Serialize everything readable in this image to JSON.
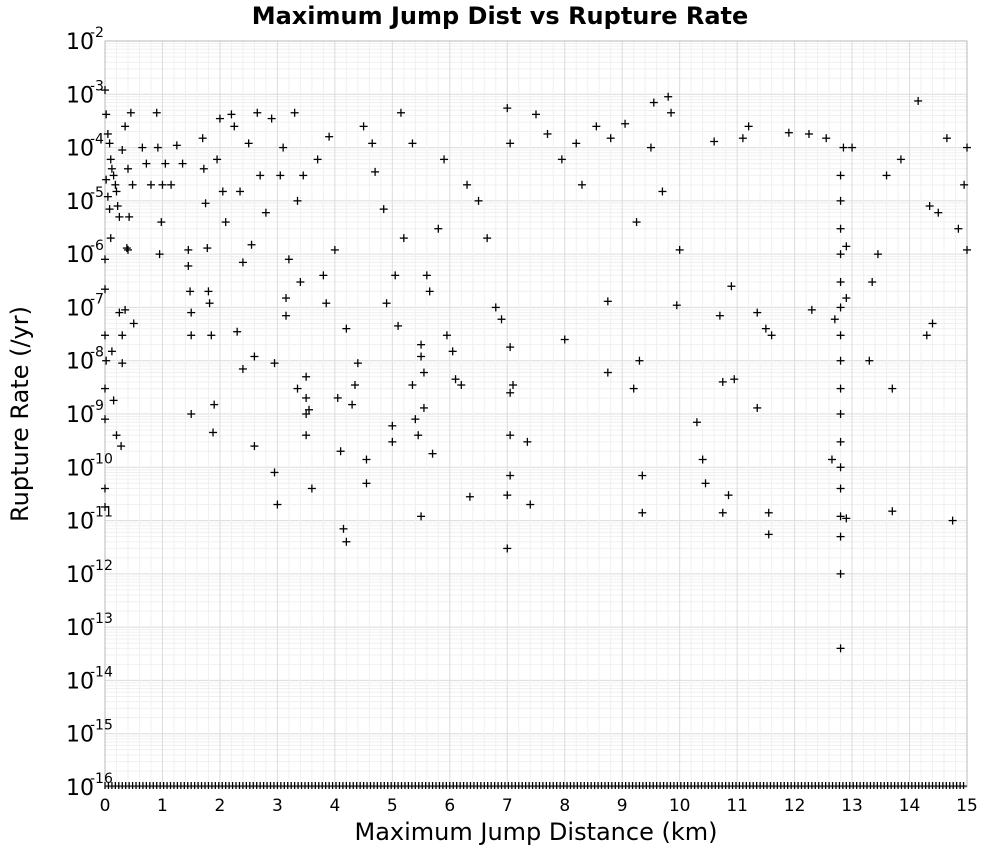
{
  "chart_data": {
    "type": "scatter",
    "title": "Maximum Jump Dist vs Rupture Rate",
    "xlabel": "Maximum Jump Distance (km)",
    "ylabel": "Rupture Rate (/yr)",
    "xlim": [
      0,
      15
    ],
    "ylim": [
      1e-16,
      0.01
    ],
    "yscale": "log",
    "grid": true,
    "marker": "plus",
    "x_ticks": [
      0,
      1,
      2,
      3,
      4,
      5,
      6,
      7,
      8,
      9,
      10,
      11,
      12,
      13,
      14,
      15
    ],
    "x_tick_labels": [
      "0",
      "1",
      "2",
      "3",
      "4",
      "5",
      "6",
      "7",
      "8",
      "9",
      "10",
      "11",
      "12",
      "13",
      "14",
      "15"
    ],
    "y_tick_labels": [
      {
        "base": "10",
        "exp": "-2"
      },
      {
        "base": "10",
        "exp": "-3"
      },
      {
        "base": "10",
        "exp": "-4"
      },
      {
        "base": "10",
        "exp": "-5"
      },
      {
        "base": "10",
        "exp": "-6"
      },
      {
        "base": "10",
        "exp": "-7"
      },
      {
        "base": "10",
        "exp": "-8"
      },
      {
        "base": "10",
        "exp": "-9"
      },
      {
        "base": "10",
        "exp": "-10"
      },
      {
        "base": "10",
        "exp": "-11"
      },
      {
        "base": "10",
        "exp": "-12"
      },
      {
        "base": "10",
        "exp": "-13"
      },
      {
        "base": "10",
        "exp": "-14"
      },
      {
        "base": "10",
        "exp": "-15"
      },
      {
        "base": "10",
        "exp": "-16"
      }
    ],
    "points": [
      [
        0.0,
        0.0012
      ],
      [
        0.02,
        0.00042
      ],
      [
        0.05,
        0.00018
      ],
      [
        0.08,
        0.00012
      ],
      [
        0.1,
        6e-05
      ],
      [
        0.12,
        4e-05
      ],
      [
        0.15,
        3e-05
      ],
      [
        0.18,
        2e-05
      ],
      [
        0.2,
        1.5e-05
      ],
      [
        0.22,
        8e-06
      ],
      [
        0.25,
        5e-06
      ],
      [
        0.3,
        9e-05
      ],
      [
        0.02,
        2.5e-05
      ],
      [
        0.05,
        1.2e-05
      ],
      [
        0.08,
        7e-06
      ],
      [
        0.1,
        2e-06
      ],
      [
        0.0,
        8e-07
      ],
      [
        0.0,
        2.2e-07
      ],
      [
        0.0,
        3e-08
      ],
      [
        0.02,
        1e-08
      ],
      [
        0.0,
        3e-09
      ],
      [
        0.0,
        8e-10
      ],
      [
        0.0,
        4e-11
      ],
      [
        0.0,
        1.8e-11
      ],
      [
        0.12,
        1.5e-08
      ],
      [
        0.15,
        1.8e-09
      ],
      [
        0.2,
        4e-10
      ],
      [
        0.25,
        8e-08
      ],
      [
        0.28,
        2.5e-10
      ],
      [
        0.3,
        9e-09
      ],
      [
        0.3,
        3e-08
      ],
      [
        0.35,
        9e-08
      ],
      [
        0.4,
        1.2e-06
      ],
      [
        0.4,
        4e-05
      ],
      [
        0.45,
        0.00045
      ],
      [
        0.5,
        5e-08
      ],
      [
        0.35,
        0.00025
      ],
      [
        0.38,
        1.3e-06
      ],
      [
        0.42,
        5e-06
      ],
      [
        0.48,
        2e-05
      ],
      [
        0.65,
        0.0001
      ],
      [
        0.72,
        5e-05
      ],
      [
        0.8,
        2e-05
      ],
      [
        0.9,
        0.00045
      ],
      [
        0.92,
        0.0001
      ],
      [
        0.95,
        1e-06
      ],
      [
        0.98,
        4e-06
      ],
      [
        1.0,
        2e-05
      ],
      [
        1.05,
        5e-05
      ],
      [
        1.15,
        2e-05
      ],
      [
        1.25,
        0.00011
      ],
      [
        1.35,
        5e-05
      ],
      [
        1.45,
        1.2e-06
      ],
      [
        1.45,
        6e-07
      ],
      [
        1.48,
        2e-07
      ],
      [
        1.5,
        8e-08
      ],
      [
        1.5,
        3e-08
      ],
      [
        1.5,
        1e-09
      ],
      [
        1.7,
        0.00015
      ],
      [
        1.72,
        4e-05
      ],
      [
        1.75,
        9e-06
      ],
      [
        1.78,
        1.3e-06
      ],
      [
        1.8,
        2e-07
      ],
      [
        1.82,
        1.2e-07
      ],
      [
        1.85,
        3e-08
      ],
      [
        1.88,
        4.5e-10
      ],
      [
        1.9,
        1.5e-09
      ],
      [
        1.95,
        6e-05
      ],
      [
        2.0,
        0.00035
      ],
      [
        2.05,
        1.5e-05
      ],
      [
        2.1,
        4e-06
      ],
      [
        2.2,
        0.00042
      ],
      [
        2.25,
        0.00025
      ],
      [
        2.3,
        3.5e-08
      ],
      [
        2.35,
        1.5e-05
      ],
      [
        2.4,
        7e-07
      ],
      [
        2.4,
        7e-09
      ],
      [
        2.5,
        0.00012
      ],
      [
        2.55,
        1.5e-06
      ],
      [
        2.6,
        2.5e-10
      ],
      [
        2.6,
        1.2e-08
      ],
      [
        2.65,
        0.00045
      ],
      [
        2.7,
        3e-05
      ],
      [
        2.8,
        6e-06
      ],
      [
        2.9,
        0.00035
      ],
      [
        2.95,
        8e-11
      ],
      [
        2.95,
        9e-09
      ],
      [
        3.0,
        2e-11
      ],
      [
        3.05,
        3e-05
      ],
      [
        3.1,
        0.0001
      ],
      [
        3.15,
        1.5e-07
      ],
      [
        3.15,
        7e-08
      ],
      [
        3.2,
        8e-07
      ],
      [
        3.3,
        0.00045
      ],
      [
        3.35,
        1e-05
      ],
      [
        3.35,
        3e-09
      ],
      [
        3.4,
        3e-07
      ],
      [
        3.45,
        3e-05
      ],
      [
        3.5,
        5e-09
      ],
      [
        3.5,
        2e-09
      ],
      [
        3.5,
        1e-09
      ],
      [
        3.5,
        4e-10
      ],
      [
        3.55,
        1.2e-09
      ],
      [
        3.6,
        4e-11
      ],
      [
        3.7,
        6e-05
      ],
      [
        3.8,
        4e-07
      ],
      [
        3.85,
        1.2e-07
      ],
      [
        3.9,
        0.00016
      ],
      [
        4.0,
        1.2e-06
      ],
      [
        4.05,
        2e-09
      ],
      [
        4.1,
        2e-10
      ],
      [
        4.15,
        7e-12
      ],
      [
        4.2,
        4e-12
      ],
      [
        4.2,
        4e-08
      ],
      [
        4.3,
        1.5e-09
      ],
      [
        4.35,
        3.5e-09
      ],
      [
        4.4,
        9e-09
      ],
      [
        4.5,
        0.00025
      ],
      [
        4.55,
        5e-11
      ],
      [
        4.55,
        1.4e-10
      ],
      [
        4.65,
        0.00012
      ],
      [
        4.7,
        3.5e-05
      ],
      [
        4.85,
        7e-06
      ],
      [
        4.9,
        1.2e-07
      ],
      [
        5.0,
        6e-10
      ],
      [
        5.0,
        3e-10
      ],
      [
        5.05,
        4e-07
      ],
      [
        5.1,
        4.5e-08
      ],
      [
        5.15,
        0.00045
      ],
      [
        5.2,
        2e-06
      ],
      [
        5.35,
        0.00012
      ],
      [
        5.35,
        3.5e-09
      ],
      [
        5.4,
        8e-10
      ],
      [
        5.45,
        4e-10
      ],
      [
        5.5,
        2e-08
      ],
      [
        5.5,
        1.2e-08
      ],
      [
        5.55,
        6e-09
      ],
      [
        5.55,
        1.3e-09
      ],
      [
        5.5,
        1.2e-11
      ],
      [
        5.6,
        4e-07
      ],
      [
        5.65,
        2e-07
      ],
      [
        5.7,
        1.8e-10
      ],
      [
        5.8,
        3e-06
      ],
      [
        5.9,
        6e-05
      ],
      [
        5.95,
        3e-08
      ],
      [
        6.05,
        1.5e-08
      ],
      [
        6.1,
        4.5e-09
      ],
      [
        6.2,
        3.5e-09
      ],
      [
        6.3,
        2e-05
      ],
      [
        6.35,
        2.8e-11
      ],
      [
        6.5,
        1e-05
      ],
      [
        6.65,
        2e-06
      ],
      [
        6.8,
        1e-07
      ],
      [
        6.9,
        6e-08
      ],
      [
        7.0,
        0.00055
      ],
      [
        7.05,
        0.00012
      ],
      [
        7.05,
        4e-10
      ],
      [
        7.05,
        2.5e-09
      ],
      [
        7.1,
        3.5e-09
      ],
      [
        7.05,
        1.8e-08
      ],
      [
        7.05,
        7e-11
      ],
      [
        7.0,
        3e-11
      ],
      [
        7.0,
        3e-12
      ],
      [
        7.35,
        3e-10
      ],
      [
        7.4,
        2e-11
      ],
      [
        7.5,
        0.00042
      ],
      [
        7.7,
        0.00018
      ],
      [
        7.95,
        6e-05
      ],
      [
        8.0,
        2.5e-08
      ],
      [
        8.2,
        0.00012
      ],
      [
        8.3,
        2e-05
      ],
      [
        8.55,
        0.00025
      ],
      [
        8.75,
        1.3e-07
      ],
      [
        8.75,
        6e-09
      ],
      [
        8.8,
        0.00015
      ],
      [
        9.05,
        0.00028
      ],
      [
        9.2,
        3e-09
      ],
      [
        9.25,
        4e-06
      ],
      [
        9.3,
        1e-08
      ],
      [
        9.35,
        7e-11
      ],
      [
        9.35,
        1.4e-11
      ],
      [
        9.5,
        0.0001
      ],
      [
        9.55,
        0.0007
      ],
      [
        9.7,
        1.5e-05
      ],
      [
        9.8,
        0.0009
      ],
      [
        9.85,
        0.00045
      ],
      [
        9.95,
        1.1e-07
      ],
      [
        10.0,
        1.2e-06
      ],
      [
        10.3,
        7e-10
      ],
      [
        10.4,
        1.4e-10
      ],
      [
        10.45,
        5e-11
      ],
      [
        10.6,
        0.00013
      ],
      [
        10.7,
        7e-08
      ],
      [
        10.75,
        4e-09
      ],
      [
        10.75,
        1.4e-11
      ],
      [
        10.85,
        3e-11
      ],
      [
        10.9,
        2.5e-07
      ],
      [
        10.95,
        4.5e-09
      ],
      [
        11.1,
        0.00015
      ],
      [
        11.2,
        0.00025
      ],
      [
        11.35,
        1.3e-09
      ],
      [
        11.35,
        8e-08
      ],
      [
        11.5,
        4e-08
      ],
      [
        11.6,
        3e-08
      ],
      [
        11.55,
        1.4e-11
      ],
      [
        11.55,
        5.5e-12
      ],
      [
        11.9,
        0.00019
      ],
      [
        12.25,
        0.00018
      ],
      [
        12.3,
        9e-08
      ],
      [
        12.55,
        0.00015
      ],
      [
        12.65,
        1.4e-10
      ],
      [
        12.7,
        6e-08
      ],
      [
        12.8,
        4e-14
      ],
      [
        12.8,
        1e-12
      ],
      [
        12.8,
        5e-12
      ],
      [
        12.8,
        1.2e-11
      ],
      [
        12.8,
        4e-11
      ],
      [
        12.8,
        1e-10
      ],
      [
        12.8,
        3e-10
      ],
      [
        12.8,
        1e-09
      ],
      [
        12.8,
        3e-09
      ],
      [
        12.8,
        1e-08
      ],
      [
        12.8,
        3e-08
      ],
      [
        12.8,
        1e-07
      ],
      [
        12.8,
        3e-07
      ],
      [
        12.8,
        1e-06
      ],
      [
        12.8,
        3e-06
      ],
      [
        12.8,
        1e-05
      ],
      [
        12.8,
        3e-05
      ],
      [
        12.85,
        0.0001
      ],
      [
        12.9,
        1.1e-11
      ],
      [
        12.9,
        1.5e-07
      ],
      [
        12.9,
        1.4e-06
      ],
      [
        13.0,
        0.0001
      ],
      [
        13.3,
        1e-08
      ],
      [
        13.35,
        3e-07
      ],
      [
        13.45,
        1e-06
      ],
      [
        13.6,
        3e-05
      ],
      [
        13.7,
        3e-09
      ],
      [
        13.7,
        1.5e-11
      ],
      [
        13.85,
        6e-05
      ],
      [
        14.15,
        0.00075
      ],
      [
        14.3,
        3e-08
      ],
      [
        14.4,
        5e-08
      ],
      [
        14.35,
        8e-06
      ],
      [
        14.5,
        6e-06
      ],
      [
        14.65,
        0.00015
      ],
      [
        14.75,
        1e-11
      ],
      [
        14.85,
        3e-06
      ],
      [
        14.95,
        2e-05
      ],
      [
        15.0,
        1.2e-06
      ],
      [
        15.0,
        0.0001
      ]
    ]
  }
}
